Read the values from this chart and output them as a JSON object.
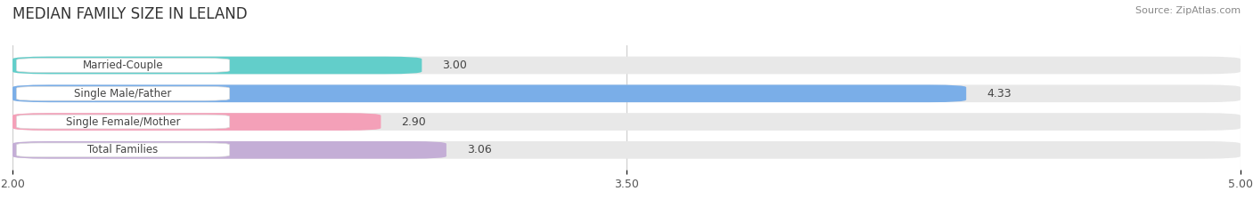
{
  "title": "MEDIAN FAMILY SIZE IN LELAND",
  "source": "Source: ZipAtlas.com",
  "categories": [
    "Married-Couple",
    "Single Male/Father",
    "Single Female/Mother",
    "Total Families"
  ],
  "values": [
    3.0,
    4.33,
    2.9,
    3.06
  ],
  "bar_colors": [
    "#62ceca",
    "#7aaee8",
    "#f4a0b8",
    "#c4aed6"
  ],
  "track_color": "#e8e8e8",
  "xlim": [
    2.0,
    5.0
  ],
  "xticks": [
    2.0,
    3.5,
    5.0
  ],
  "bar_height": 0.62,
  "label_fontsize": 8.5,
  "value_fontsize": 9,
  "title_fontsize": 12,
  "background_color": "#ffffff",
  "label_box_color": "#ffffff",
  "grid_color": "#cccccc",
  "text_color": "#444444",
  "source_color": "#888888"
}
